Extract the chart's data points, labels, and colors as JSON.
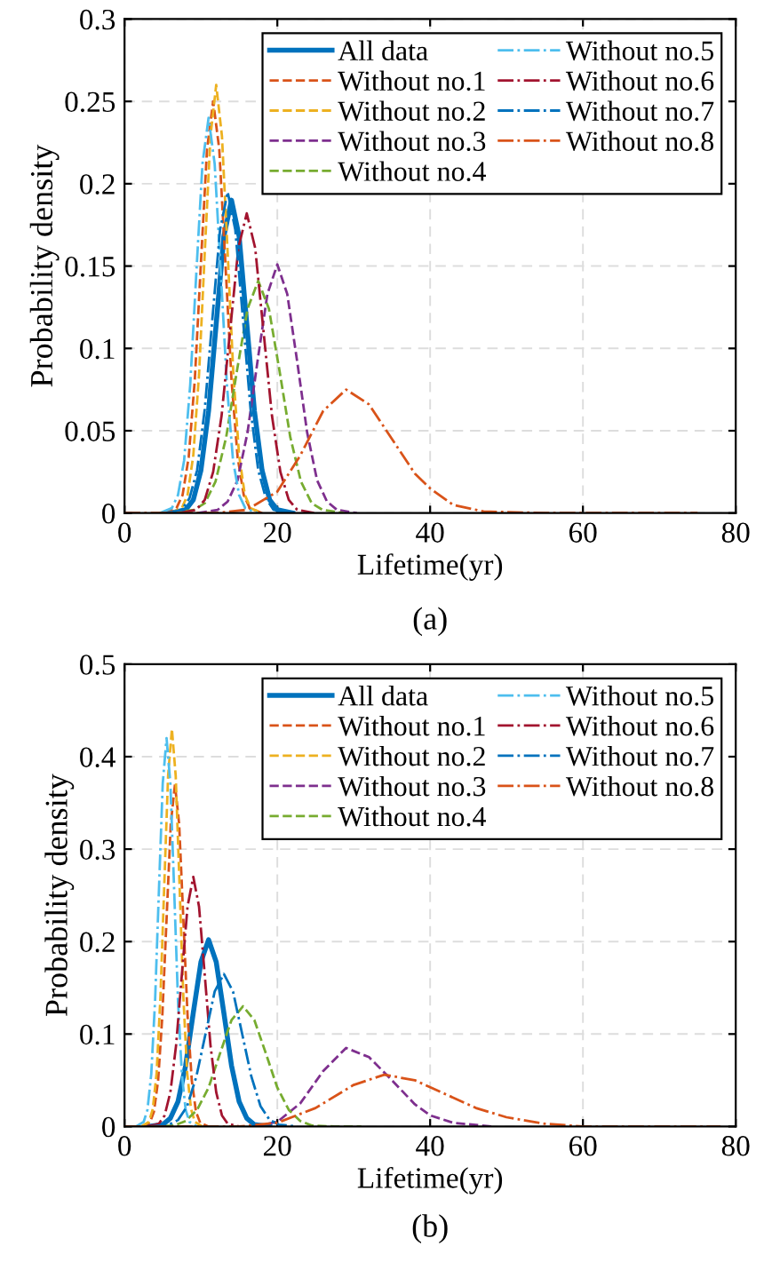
{
  "chart_data": [
    {
      "type": "line",
      "xlabel": "Lifetime(yr)",
      "ylabel": "Probability density",
      "annotations": [
        "(a)"
      ],
      "xlim": [
        0,
        80
      ],
      "xticks": [
        0,
        20,
        40,
        60,
        80
      ],
      "ylim": [
        0,
        0.3
      ],
      "yticks": [
        0,
        0.05,
        0.1,
        0.15,
        0.2,
        0.25,
        0.3
      ],
      "grid": true,
      "legend": "top right",
      "series": [
        {
          "name": "All data",
          "color": "#0072bd",
          "line_style": "solid",
          "x": [
            6,
            8,
            9,
            10,
            11,
            12,
            13,
            14,
            15,
            16,
            17,
            18,
            19,
            20,
            22
          ],
          "values": [
            0,
            0.002,
            0.008,
            0.026,
            0.062,
            0.115,
            0.168,
            0.19,
            0.168,
            0.115,
            0.062,
            0.026,
            0.008,
            0.002,
            0
          ]
        },
        {
          "name": "Without no.1",
          "color": "#d95319",
          "line_style": "dashed",
          "x": [
            5.2,
            6.8,
            7.6,
            8.4,
            9.2,
            10,
            10.8,
            11.6,
            12.4,
            13.2,
            14,
            14.8,
            15.6,
            16.4,
            18
          ],
          "values": [
            0,
            0.003,
            0.011,
            0.034,
            0.081,
            0.152,
            0.221,
            0.25,
            0.221,
            0.152,
            0.081,
            0.034,
            0.011,
            0.003,
            0
          ]
        },
        {
          "name": "Without no.2",
          "color": "#edb120",
          "line_style": "dashed",
          "x": [
            6,
            7.5,
            8.25,
            9,
            9.75,
            10.5,
            11.25,
            12,
            12.75,
            13.5,
            14.25,
            15,
            15.75,
            16.5,
            18
          ],
          "values": [
            0,
            0.003,
            0.011,
            0.035,
            0.084,
            0.158,
            0.229,
            0.26,
            0.229,
            0.158,
            0.084,
            0.035,
            0.011,
            0.003,
            0
          ]
        },
        {
          "name": "Without no.3",
          "color": "#7e2f8e",
          "line_style": "dashed",
          "x": [
            9.6,
            12.2,
            13.5,
            14.8,
            16.1,
            17.4,
            18.7,
            20,
            21.3,
            22.6,
            23.9,
            25.2,
            26.5,
            27.8,
            30.4
          ],
          "values": [
            0,
            0.002,
            0.007,
            0.02,
            0.049,
            0.092,
            0.133,
            0.151,
            0.133,
            0.092,
            0.049,
            0.02,
            0.007,
            0.002,
            0
          ]
        },
        {
          "name": "Without no.4",
          "color": "#77ac30",
          "line_style": "dashed",
          "x": [
            6.3,
            9.1,
            10.5,
            11.9,
            13.3,
            14.7,
            16.1,
            17.5,
            18.9,
            20.3,
            21.7,
            23.1,
            24.5,
            25.9,
            28.7
          ],
          "values": [
            0,
            0.002,
            0.006,
            0.019,
            0.046,
            0.086,
            0.124,
            0.141,
            0.124,
            0.086,
            0.046,
            0.019,
            0.006,
            0.002,
            0
          ]
        },
        {
          "name": "Without no.5",
          "color": "#4dbeee",
          "line_style": "dashdot",
          "x": [
            4.6,
            6.2,
            7,
            7.8,
            8.6,
            9.4,
            10.2,
            11,
            11.8,
            12.6,
            13.4,
            14.2,
            15,
            15.8,
            17.4
          ],
          "values": [
            0,
            0.003,
            0.011,
            0.032,
            0.078,
            0.146,
            0.212,
            0.24,
            0.212,
            0.146,
            0.078,
            0.032,
            0.011,
            0.003,
            0
          ]
        },
        {
          "name": "Without no.6",
          "color": "#a2142f",
          "line_style": "dashdot",
          "x": [
            7.2,
            9.4,
            10.5,
            11.6,
            12.7,
            13.8,
            14.9,
            16,
            17.1,
            18.2,
            19.3,
            20.4,
            21.5,
            22.6,
            24.8
          ],
          "values": [
            0,
            0.002,
            0.008,
            0.025,
            0.059,
            0.11,
            0.161,
            0.182,
            0.161,
            0.11,
            0.059,
            0.025,
            0.008,
            0.002,
            0
          ]
        },
        {
          "name": "Without no.7",
          "color": "#0072bd",
          "line_style": "dashdot",
          "x": [
            5.5,
            7.5,
            8.5,
            9.5,
            10.5,
            11.5,
            12.5,
            13.5,
            14.5,
            15.5,
            16.5,
            17.5,
            18.5,
            19.5,
            21.5
          ],
          "values": [
            0,
            0.002,
            0.009,
            0.026,
            0.063,
            0.118,
            0.172,
            0.195,
            0.172,
            0.118,
            0.063,
            0.026,
            0.009,
            0.002,
            0
          ]
        },
        {
          "name": "Without no.8",
          "color": "#d95319",
          "line_style": "dashdot",
          "x": [
            0,
            12,
            16,
            20,
            23,
            26,
            29,
            32,
            35,
            38,
            40,
            43,
            47,
            55,
            75
          ],
          "values": [
            0,
            0,
            0.002,
            0.013,
            0.035,
            0.062,
            0.075,
            0.066,
            0.045,
            0.024,
            0.015,
            0.005,
            0.001,
            0,
            0
          ]
        }
      ]
    },
    {
      "type": "line",
      "xlabel": "Lifetime(yr)",
      "ylabel": "Probability density",
      "annotations": [
        "(b)"
      ],
      "xlim": [
        0,
        80
      ],
      "xticks": [
        0,
        20,
        40,
        60,
        80
      ],
      "ylim": [
        0,
        0.5
      ],
      "yticks": [
        0,
        0.1,
        0.2,
        0.3,
        0.4,
        0.5
      ],
      "grid": true,
      "legend": "top right",
      "series": [
        {
          "name": "All data",
          "color": "#0072bd",
          "line_style": "solid",
          "x": [
            3,
            5,
            6,
            7,
            8,
            9,
            10,
            11,
            12,
            13,
            14,
            15,
            16,
            17,
            19
          ],
          "values": [
            0,
            0.002,
            0.009,
            0.027,
            0.066,
            0.123,
            0.178,
            0.202,
            0.178,
            0.123,
            0.066,
            0.027,
            0.009,
            0.002,
            0
          ]
        },
        {
          "name": "Without no.1",
          "color": "#d95319",
          "line_style": "dashed",
          "x": [
            2.2,
            3.3,
            3.85,
            4.4,
            4.95,
            5.5,
            6.05,
            6.6,
            7.15,
            7.7,
            8.25,
            8.8,
            9.35,
            9.9,
            11
          ],
          "values": [
            0,
            0.004,
            0.016,
            0.05,
            0.12,
            0.224,
            0.327,
            0.37,
            0.327,
            0.224,
            0.12,
            0.05,
            0.016,
            0.004,
            0
          ]
        },
        {
          "name": "Without no.2",
          "color": "#edb120",
          "line_style": "dashed",
          "x": [
            2.2,
            3.2,
            3.7,
            4.2,
            4.7,
            5.2,
            5.7,
            6.2,
            6.7,
            7.2,
            7.7,
            8.2,
            8.7,
            9.2,
            10.2
          ],
          "values": [
            0,
            0.005,
            0.019,
            0.058,
            0.14,
            0.261,
            0.379,
            0.43,
            0.379,
            0.261,
            0.14,
            0.058,
            0.019,
            0.005,
            0
          ]
        },
        {
          "name": "Without no.3",
          "color": "#7e2f8e",
          "line_style": "dashed",
          "x": [
            17,
            20,
            23,
            26,
            29,
            32,
            35,
            38,
            40,
            43,
            48
          ],
          "values": [
            0,
            0.005,
            0.025,
            0.06,
            0.085,
            0.075,
            0.05,
            0.024,
            0.012,
            0.004,
            0
          ]
        },
        {
          "name": "Without no.4",
          "color": "#77ac30",
          "line_style": "dashed",
          "x": [
            3.5,
            6.5,
            8,
            9.5,
            11,
            12.5,
            14,
            15.5,
            17,
            18.5,
            20,
            21.5,
            23,
            24.5,
            27.5,
            31
          ],
          "values": [
            0,
            0.001,
            0.006,
            0.018,
            0.042,
            0.079,
            0.115,
            0.13,
            0.115,
            0.079,
            0.042,
            0.018,
            0.006,
            0.001,
            0,
            0
          ]
        },
        {
          "name": "Without no.5",
          "color": "#4dbeee",
          "line_style": "dashdot",
          "x": [
            1.5,
            2.5,
            3,
            3.5,
            4,
            4.5,
            5,
            5.5,
            6,
            6.5,
            7,
            7.5,
            8,
            8.5,
            9.5
          ],
          "values": [
            0,
            0.005,
            0.018,
            0.057,
            0.136,
            0.255,
            0.371,
            0.42,
            0.371,
            0.255,
            0.136,
            0.057,
            0.018,
            0.005,
            0
          ]
        },
        {
          "name": "Without no.6",
          "color": "#a2142f",
          "line_style": "dashdot",
          "x": [
            3,
            4.5,
            5.25,
            6,
            6.75,
            7.5,
            8.25,
            9,
            9.75,
            10.5,
            11.25,
            12,
            12.75,
            13.5,
            15
          ],
          "values": [
            0,
            0.003,
            0.012,
            0.037,
            0.088,
            0.164,
            0.238,
            0.27,
            0.238,
            0.164,
            0.088,
            0.037,
            0.012,
            0.003,
            0
          ]
        },
        {
          "name": "Without no.7",
          "color": "#0072bd",
          "line_style": "dashdot",
          "x": [
            3.4,
            5.8,
            7,
            8.2,
            9.4,
            10.6,
            11.8,
            13,
            14.2,
            15.4,
            16.6,
            17.8,
            19,
            20.2,
            22.6
          ],
          "values": [
            0,
            0.002,
            0.007,
            0.022,
            0.054,
            0.1,
            0.146,
            0.165,
            0.146,
            0.1,
            0.054,
            0.022,
            0.007,
            0.002,
            0
          ]
        },
        {
          "name": "Without no.8",
          "color": "#d95319",
          "line_style": "dashdot",
          "x": [
            0,
            15,
            20,
            25,
            30,
            34,
            38,
            42,
            46,
            50,
            55,
            60,
            70,
            78
          ],
          "values": [
            0,
            0,
            0.004,
            0.02,
            0.045,
            0.056,
            0.05,
            0.035,
            0.02,
            0.01,
            0.003,
            0,
            0,
            0
          ]
        }
      ]
    }
  ]
}
